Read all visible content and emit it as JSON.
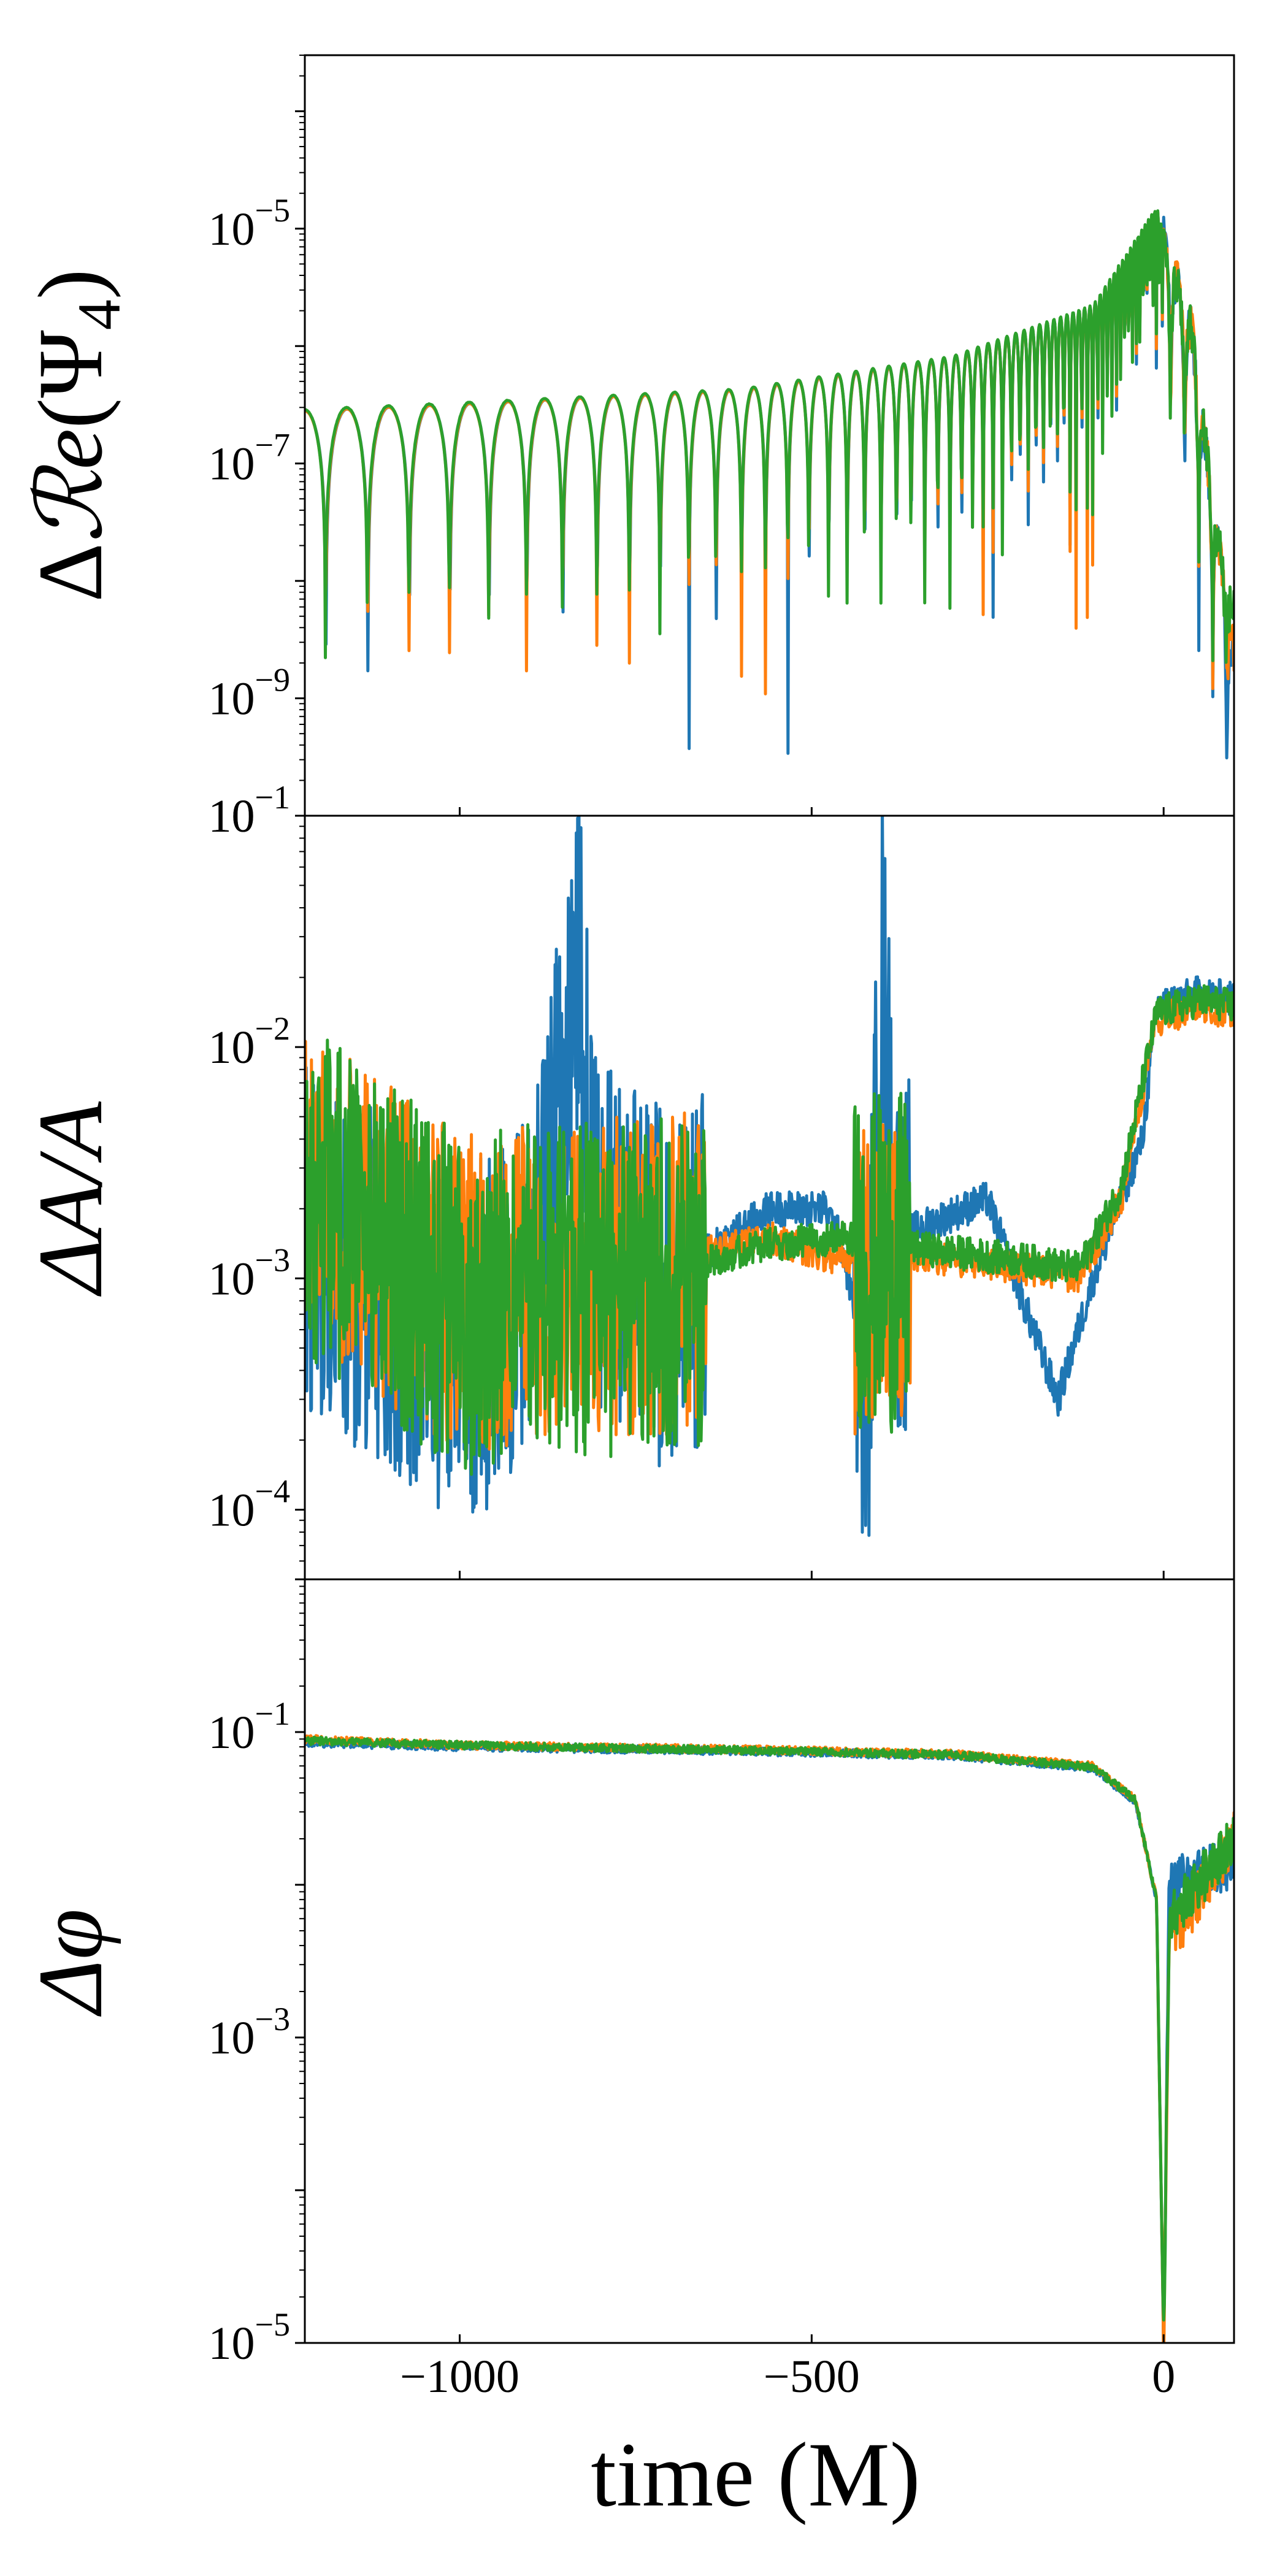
{
  "figure": {
    "xlabel": "time (M)"
  },
  "chart_data": [
    {
      "type": "line",
      "ylabel": "ΔRe(Ψ4)",
      "ylabel_parts": {
        "delta": "Δ",
        "re": "ℛe",
        "open": "(Ψ",
        "sub": "4",
        "close": ")"
      },
      "yscale": "log",
      "xlim": [
        -1220,
        100
      ],
      "ylim": [
        1e-10,
        0.0003
      ],
      "xticks": [
        -1000,
        -500,
        0
      ],
      "xtick_labels": [],
      "yticks": [
        1e-09,
        1e-07,
        1e-05
      ],
      "ytick_labels": [
        {
          "base": "10",
          "exp": "−9"
        },
        {
          "base": "10",
          "exp": "−7"
        },
        {
          "base": "10",
          "exp": "−5"
        }
      ],
      "bottom_cut_label": {
        "base": "10",
        "exp": "−1"
      },
      "model": "oscillation",
      "params": {
        "t0": -1220,
        "period_start": 60,
        "period_end": 20,
        "env": [
          [
            -1220,
            2.8e-07
          ],
          [
            -1000,
            3.2e-07
          ],
          [
            -600,
            4.2e-07
          ],
          [
            -300,
            8e-07
          ],
          [
            -100,
            2.2e-06
          ],
          [
            -10,
            1.5e-05
          ],
          [
            40,
            1.5e-06
          ],
          [
            100,
            2e-09
          ]
        ]
      },
      "series": [
        {
          "color": "#1f77b4",
          "trough_min": 1e-10,
          "scale": 1.0
        },
        {
          "color": "#ff7f0e",
          "trough_min": 1e-09,
          "scale": 1.0
        },
        {
          "color": "#2ca02c",
          "trough_min": 3e-09,
          "scale": 1.02
        }
      ]
    },
    {
      "type": "line",
      "ylabel": "ΔA/A",
      "yscale": "log",
      "xlim": [
        -1220,
        100
      ],
      "ylim": [
        5e-05,
        0.1
      ],
      "xticks": [
        -1000,
        -500,
        0
      ],
      "xtick_labels": [],
      "yticks": [
        0.0001,
        0.001,
        0.01,
        0.1
      ],
      "ytick_labels": [
        {
          "base": "10",
          "exp": "−4"
        },
        {
          "base": "10",
          "exp": "−3"
        },
        {
          "base": "10",
          "exp": "−2"
        },
        {
          "base": "10",
          "exp": "−1"
        }
      ],
      "model": "noisy",
      "series": [
        {
          "color": "#1f77b4",
          "base": [
            [
              -1220,
              0.002
            ],
            [
              -1000,
              0.0006
            ],
            [
              -900,
              0.001
            ],
            [
              -830,
              0.025
            ],
            [
              -810,
              0.002
            ],
            [
              -700,
              0.001
            ],
            [
              -560,
              0.002
            ],
            [
              -480,
              0.002
            ],
            [
              -460,
              0.0015
            ],
            [
              -420,
              0.0004
            ],
            [
              -400,
              0.03
            ],
            [
              -380,
              0.0015
            ],
            [
              -250,
              0.0022
            ],
            [
              -200,
              0.0008
            ],
            [
              -150,
              0.0003
            ],
            [
              -100,
              0.001
            ],
            [
              -30,
              0.004
            ],
            [
              -10,
              0.015
            ],
            [
              50,
              0.017
            ],
            [
              100,
              0.016
            ]
          ],
          "noise": 0.9
        },
        {
          "color": "#ff7f0e",
          "base": [
            [
              -1220,
              0.003
            ],
            [
              -1000,
              0.001
            ],
            [
              -850,
              0.0012
            ],
            [
              -700,
              0.0012
            ],
            [
              -560,
              0.0015
            ],
            [
              -460,
              0.0012
            ],
            [
              -400,
              0.0013
            ],
            [
              -300,
              0.0012
            ],
            [
              -200,
              0.0011
            ],
            [
              -120,
              0.001
            ],
            [
              -60,
              0.0022
            ],
            [
              -10,
              0.013
            ],
            [
              50,
              0.015
            ],
            [
              100,
              0.014
            ]
          ],
          "noise": 0.8
        },
        {
          "color": "#2ca02c",
          "base": [
            [
              -1220,
              0.003
            ],
            [
              -1000,
              0.0009
            ],
            [
              -850,
              0.0011
            ],
            [
              -700,
              0.0011
            ],
            [
              -560,
              0.0014
            ],
            [
              -460,
              0.0015
            ],
            [
              -400,
              0.0014
            ],
            [
              -300,
              0.0013
            ],
            [
              -200,
              0.0012
            ],
            [
              -120,
              0.0011
            ],
            [
              -60,
              0.0025
            ],
            [
              -10,
              0.014
            ],
            [
              50,
              0.016
            ],
            [
              100,
              0.015
            ]
          ],
          "noise": 0.85
        }
      ]
    },
    {
      "type": "line",
      "ylabel": "Δφ",
      "yscale": "log",
      "xlim": [
        -1220,
        100
      ],
      "ylim": [
        1e-05,
        1.0
      ],
      "xticks": [
        -1000,
        -500,
        0
      ],
      "xtick_labels": [
        "−1000",
        "−500",
        "0"
      ],
      "yticks": [
        1e-05,
        0.001,
        0.1
      ],
      "ytick_labels": [
        {
          "base": "10",
          "exp": "−5"
        },
        {
          "base": "10",
          "exp": "−3"
        },
        {
          "base": "10",
          "exp": "−1"
        }
      ],
      "model": "phase",
      "series": [
        {
          "color": "#1f77b4",
          "base": [
            [
              -1220,
              0.085
            ],
            [
              -1000,
              0.08
            ],
            [
              -600,
              0.075
            ],
            [
              -300,
              0.07
            ],
            [
              -100,
              0.058
            ],
            [
              -40,
              0.035
            ],
            [
              -10,
              0.008
            ],
            [
              0,
              1e-05
            ],
            [
              8,
              0.009
            ],
            [
              30,
              0.011
            ],
            [
              100,
              0.014
            ]
          ]
        },
        {
          "color": "#ff7f0e",
          "base": [
            [
              -1220,
              0.09
            ],
            [
              -1000,
              0.082
            ],
            [
              -600,
              0.077
            ],
            [
              -300,
              0.072
            ],
            [
              -100,
              0.06
            ],
            [
              -40,
              0.036
            ],
            [
              -10,
              0.008
            ],
            [
              0,
              1e-05
            ],
            [
              8,
              0.005
            ],
            [
              30,
              0.006
            ],
            [
              100,
              0.02
            ]
          ]
        },
        {
          "color": "#2ca02c",
          "base": [
            [
              -1220,
              0.088
            ],
            [
              -1000,
              0.082
            ],
            [
              -600,
              0.076
            ],
            [
              -300,
              0.071
            ],
            [
              -100,
              0.059
            ],
            [
              -40,
              0.036
            ],
            [
              -10,
              0.008
            ],
            [
              0,
              1e-05
            ],
            [
              8,
              0.006
            ],
            [
              30,
              0.008
            ],
            [
              100,
              0.02
            ]
          ]
        }
      ]
    }
  ]
}
